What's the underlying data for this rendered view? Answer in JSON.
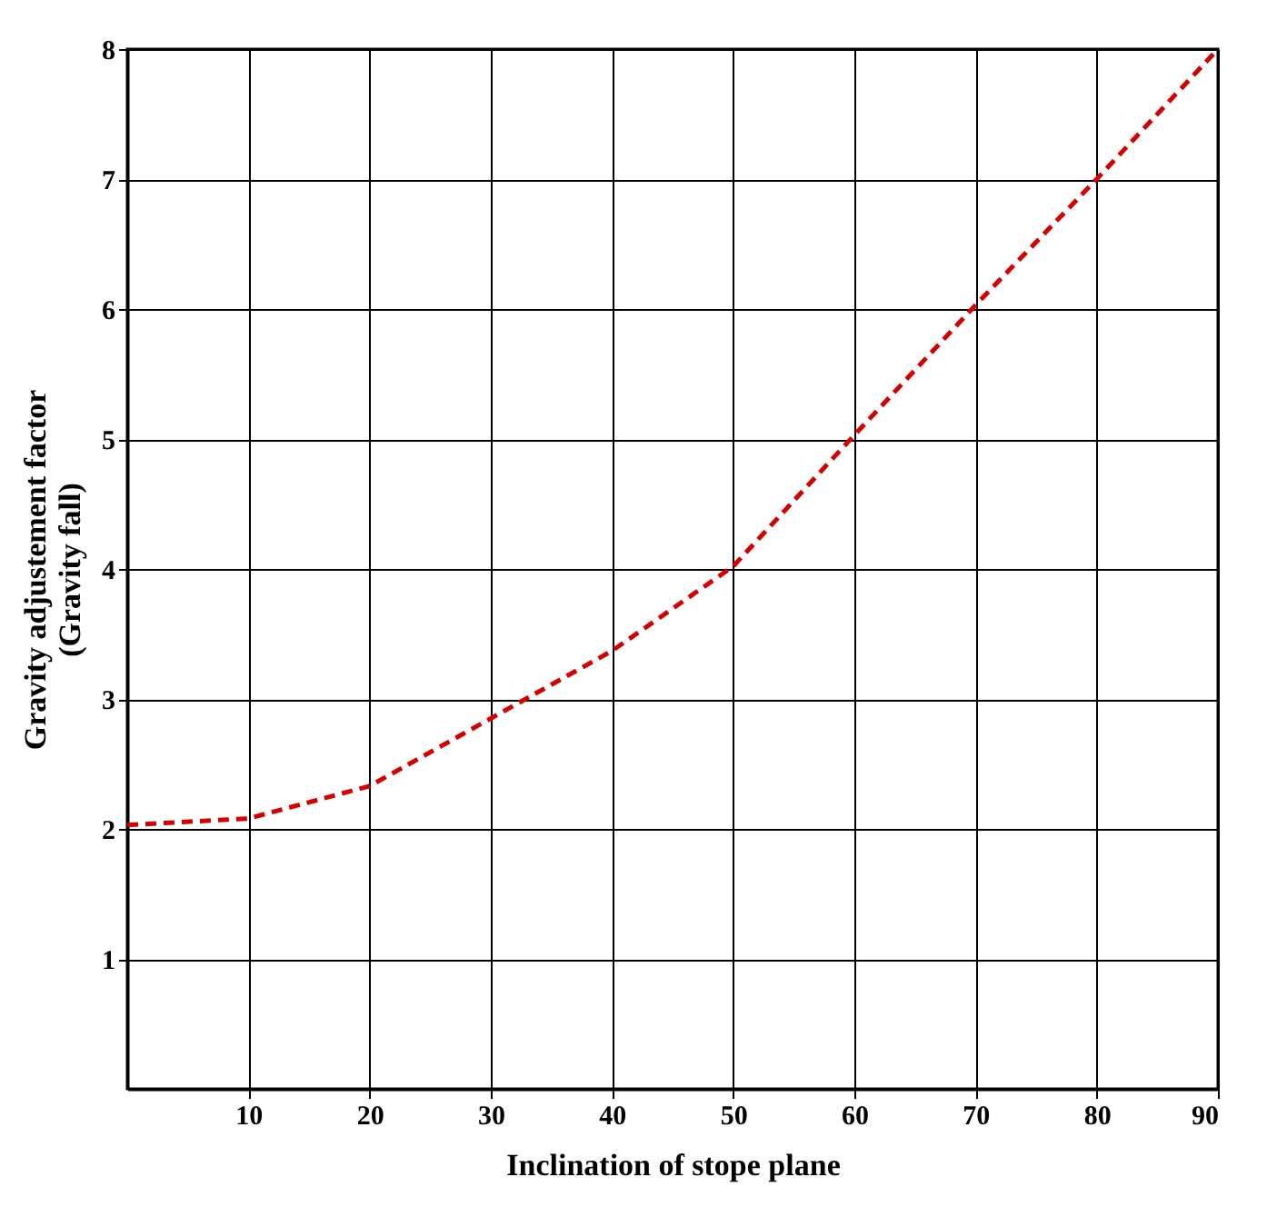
{
  "chart_data": {
    "type": "line",
    "xlabel": "Inclination of stope plane",
    "ylabel": "Gravity adjustement factor\n(Gravity fall)",
    "x": [
      0,
      10,
      20,
      30,
      40,
      50,
      60,
      70,
      80,
      90
    ],
    "series": [
      {
        "color": "#d40000",
        "values": [
          2.03,
          2.08,
          2.33,
          2.85,
          3.37,
          4.02,
          5.03,
          6.03,
          7.0,
          8.0
        ]
      }
    ],
    "xlim": [
      0,
      90
    ],
    "xticks": [
      10,
      20,
      30,
      40,
      50,
      60,
      70,
      80,
      90
    ],
    "ylim": [
      0,
      8
    ],
    "yticks": [
      1,
      2,
      3,
      4,
      5,
      6,
      7,
      8
    ],
    "grid": true,
    "marker": "none",
    "line_style": "dashed"
  }
}
